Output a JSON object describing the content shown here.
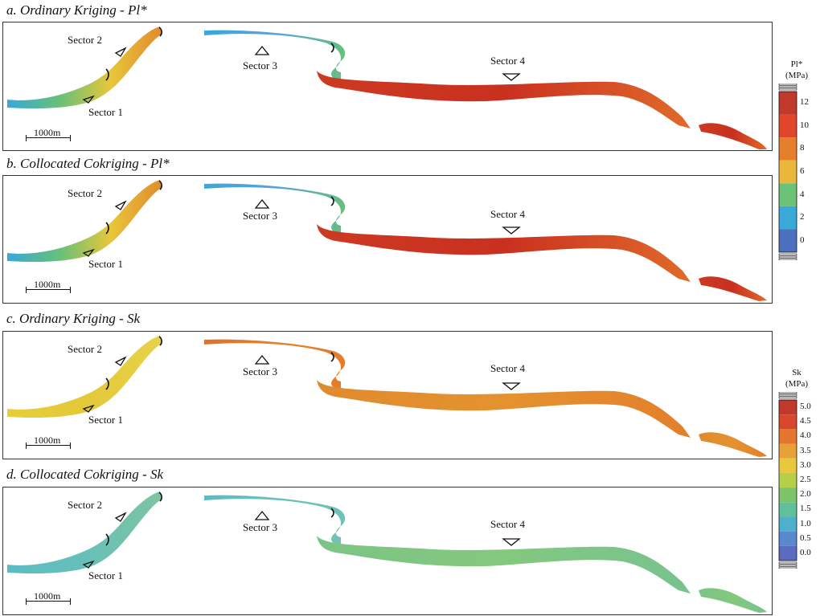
{
  "panels": [
    {
      "title": "a. Ordinary Kriging - Pl*",
      "sector1": "Sector 1",
      "sector2": "Sector 2",
      "sector3": "Sector 3",
      "sector4": "Sector 4",
      "scale": "1000m",
      "palette": {
        "left": [
          "#3aa8d8",
          "#66c07a",
          "#e8c63a",
          "#e08a2e"
        ],
        "mid": [
          "#3aa8d8",
          "#5aa0e0",
          "#66c07a"
        ],
        "right": [
          "#cc3a22",
          "#c93020",
          "#e06a2a"
        ]
      }
    },
    {
      "title": "b. Collocated Cokriging - Pl*",
      "sector1": "Sector 1",
      "sector2": "Sector 2",
      "sector3": "Sector 3",
      "sector4": "Sector 4",
      "scale": "1000m",
      "palette": {
        "left": [
          "#3aa8d8",
          "#66c07a",
          "#e8c63a",
          "#e08a2e"
        ],
        "mid": [
          "#3aa8d8",
          "#5aa0e0",
          "#66c07a"
        ],
        "right": [
          "#cc3a22",
          "#c93020",
          "#e06a2a"
        ]
      }
    },
    {
      "title": "c. Ordinary Kriging - Sk",
      "sector1": "Sector 1",
      "sector2": "Sector 2",
      "sector3": "Sector 3",
      "sector4": "Sector 4",
      "scale": "1000m",
      "palette": {
        "left": [
          "#e6cf3a",
          "#e3c838",
          "#e8d24a"
        ],
        "mid": [
          "#e0702a",
          "#e4822c",
          "#e37c2b"
        ],
        "right": [
          "#e08a2e",
          "#e4922f",
          "#e37f2c"
        ]
      }
    },
    {
      "title": "d. Collocated Cokriging - Sk",
      "sector1": "Sector 1",
      "sector2": "Sector 2",
      "sector3": "Sector 3",
      "sector4": "Sector 4",
      "scale": "1000m",
      "palette": {
        "left": [
          "#5cbcc4",
          "#66c0b8",
          "#7ec4a0"
        ],
        "mid": [
          "#5cbcc4",
          "#66c0c0",
          "#70c2b4"
        ],
        "right": [
          "#7cc486",
          "#84c87e",
          "#78c290"
        ]
      }
    }
  ],
  "legend_pl": {
    "title": "Pl*",
    "unit": "(MPa)",
    "ticks": [
      "12",
      "10",
      "8",
      "6",
      "4",
      "2",
      "0"
    ],
    "colors": [
      "#c0392b",
      "#e2462a",
      "#e67f2b",
      "#eab73a",
      "#6cc277",
      "#3aa8d8",
      "#4d6fbf"
    ]
  },
  "legend_sk": {
    "title": "Sk",
    "unit": "(MPa)",
    "ticks": [
      "5.0",
      "4.5",
      "4.0",
      "3.5",
      "3.0",
      "2.5",
      "2.0",
      "1.5",
      "1.0",
      "0.5",
      "0.0"
    ],
    "colors": [
      "#c0392b",
      "#d8472b",
      "#e4752c",
      "#e8a136",
      "#e8c83c",
      "#b6cf48",
      "#7cc46a",
      "#62bf9c",
      "#4fb0cc",
      "#5a88cf",
      "#5b6bc0"
    ]
  }
}
